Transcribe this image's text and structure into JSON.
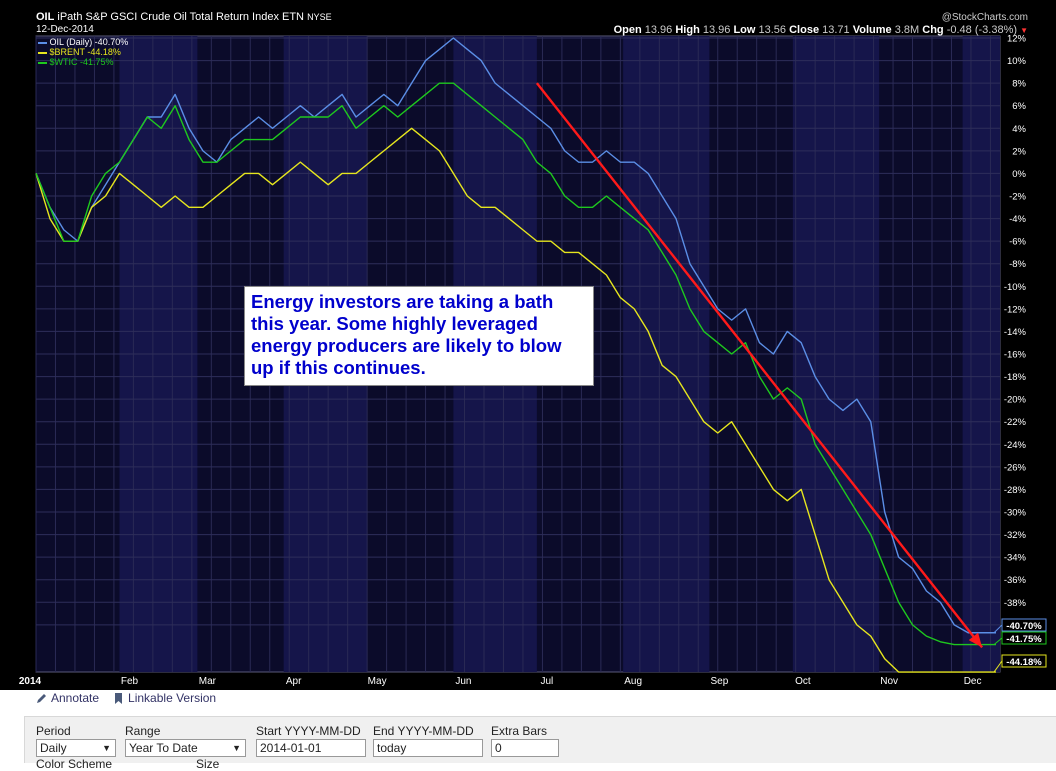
{
  "header": {
    "symbol": "OIL",
    "description": "iPath S&P GSCI Crude Oil Total Return Index ETN",
    "exchange": "NYSE",
    "date": "12-Dec-2014",
    "watermark": "@StockCharts.com",
    "open_label": "Open",
    "open": "13.96",
    "high_label": "High",
    "high": "13.96",
    "low_label": "Low",
    "low": "13.56",
    "close_label": "Close",
    "close": "13.71",
    "volume_label": "Volume",
    "volume": "3.8M",
    "chg_label": "Chg",
    "chg": "-0.48 (-3.38%)"
  },
  "legend": [
    {
      "text": "OIL (Daily) -40.70%",
      "color": "#5b8ee6"
    },
    {
      "text": "$BRENT -44.18%",
      "color": "#e6e61e"
    },
    {
      "text": "$WTIC -41.75%",
      "color": "#1ec81e"
    }
  ],
  "annotation_text": "Energy investors are taking a bath this year. Some highly leveraged energy producers are likely to blow up if this continues.",
  "chart_data": {
    "type": "line",
    "x": [
      0,
      5,
      10,
      15,
      20,
      25,
      30,
      35,
      40,
      45,
      50,
      55,
      60,
      65,
      70,
      75,
      80,
      85,
      90,
      95,
      100,
      105,
      110,
      115,
      120,
      125,
      130,
      135,
      140,
      145,
      150,
      155,
      160,
      165,
      170,
      175,
      180,
      185,
      190,
      195,
      200,
      205,
      210,
      215,
      220,
      225,
      230,
      235,
      240,
      245,
      250,
      255,
      260,
      265,
      270,
      275,
      280,
      285,
      290,
      295,
      300,
      305,
      310,
      315,
      320,
      325,
      330,
      335,
      340,
      345
    ],
    "x_tick_labels": [
      "2014",
      "Feb",
      "Mar",
      "Apr",
      "May",
      "Jun",
      "Jul",
      "Aug",
      "Sep",
      "Oct",
      "Nov",
      "Dec"
    ],
    "x_tick_positions": [
      0,
      30,
      58,
      89,
      119,
      150,
      180,
      211,
      242,
      272,
      303,
      333
    ],
    "series": [
      {
        "name": "OIL (Daily) -40.70%",
        "color": "#5b8ee6",
        "last_label": "-40.70%",
        "values": [
          0,
          -3,
          -5,
          -6,
          -3,
          -1,
          1,
          3,
          5,
          5,
          7,
          4,
          2,
          1,
          3,
          4,
          5,
          4,
          5,
          6,
          5,
          6,
          7,
          5,
          6,
          7,
          6,
          8,
          10,
          11,
          12,
          11,
          10,
          8,
          7,
          6,
          5,
          4,
          2,
          1,
          1,
          2,
          1,
          1,
          0,
          -2,
          -4,
          -8,
          -10,
          -12,
          -13,
          -12,
          -15,
          -16,
          -14,
          -15,
          -18,
          -20,
          -21,
          -20,
          -22,
          -30,
          -34,
          -35,
          -37,
          -38,
          -40,
          -40.7,
          -40.7,
          -40.7
        ]
      },
      {
        "name": "$BRENT -44.18%",
        "color": "#e6e61e",
        "last_label": "-44.18%",
        "values": [
          0,
          -4,
          -6,
          -6,
          -3,
          -2,
          0,
          -1,
          -2,
          -3,
          -2,
          -3,
          -3,
          -2,
          -1,
          0,
          0,
          -1,
          0,
          1,
          0,
          -1,
          0,
          0,
          1,
          2,
          3,
          4,
          3,
          2,
          0,
          -2,
          -3,
          -3,
          -4,
          -5,
          -6,
          -6,
          -7,
          -7,
          -8,
          -9,
          -11,
          -12,
          -14,
          -17,
          -18,
          -20,
          -22,
          -23,
          -22,
          -24,
          -26,
          -28,
          -29,
          -28,
          -32,
          -36,
          -38,
          -40,
          -41,
          -43,
          -44.18,
          -44.18,
          -44.18,
          -44.18,
          -44.18,
          -44.18,
          -44.18,
          -44.18
        ]
      },
      {
        "name": "$WTIC -41.75%",
        "color": "#1ec81e",
        "last_label": "-41.75%",
        "values": [
          0,
          -3,
          -6,
          -6,
          -2,
          0,
          1,
          3,
          5,
          4,
          6,
          3,
          1,
          1,
          2,
          3,
          3,
          3,
          4,
          5,
          5,
          5,
          6,
          4,
          5,
          6,
          5,
          6,
          7,
          8,
          8,
          7,
          6,
          5,
          4,
          3,
          1,
          0,
          -2,
          -3,
          -3,
          -2,
          -3,
          -4,
          -5,
          -7,
          -9,
          -12,
          -14,
          -15,
          -16,
          -15,
          -18,
          -20,
          -19,
          -20,
          -24,
          -26,
          -28,
          -30,
          -32,
          -35,
          -38,
          -40,
          -41,
          -41.5,
          -41.75,
          -41.75,
          -41.75,
          -41.75
        ]
      }
    ],
    "ylim": [
      -44,
      12
    ],
    "y_tick_labels": [
      "12%",
      "10%",
      "8%",
      "6%",
      "4%",
      "2%",
      "0%",
      "-2%",
      "-4%",
      "-6%",
      "-8%",
      "-10%",
      "-12%",
      "-14%",
      "-16%",
      "-18%",
      "-20%",
      "-22%",
      "-24%",
      "-26%",
      "-28%",
      "-30%",
      "-32%",
      "-34%",
      "-36%",
      "-38%",
      "-40%"
    ],
    "y_tick_values": [
      12,
      10,
      8,
      6,
      4,
      2,
      0,
      -2,
      -4,
      -6,
      -8,
      -10,
      -12,
      -14,
      -16,
      -18,
      -20,
      -22,
      -24,
      -26,
      -28,
      -30,
      -32,
      -34,
      -36,
      -38,
      -40
    ],
    "trend_arrow": {
      "color": "#ff1a1a",
      "from": [
        180,
        8
      ],
      "to": [
        340,
        -42
      ]
    },
    "grid": true
  },
  "toolbar": {
    "annotate_label": "Annotate",
    "linkable_label": "Linkable Version"
  },
  "form": {
    "period_label": "Period",
    "period_value": "Daily",
    "range_label": "Range",
    "range_value": "Year To Date",
    "start_label": "Start YYYY-MM-DD",
    "start_value": "2014-01-01",
    "end_label": "End YYYY-MM-DD",
    "end_value": "today",
    "extra_label": "Extra Bars",
    "extra_value": "0",
    "color_scheme_label": "Color Scheme",
    "size_label": "Size"
  }
}
